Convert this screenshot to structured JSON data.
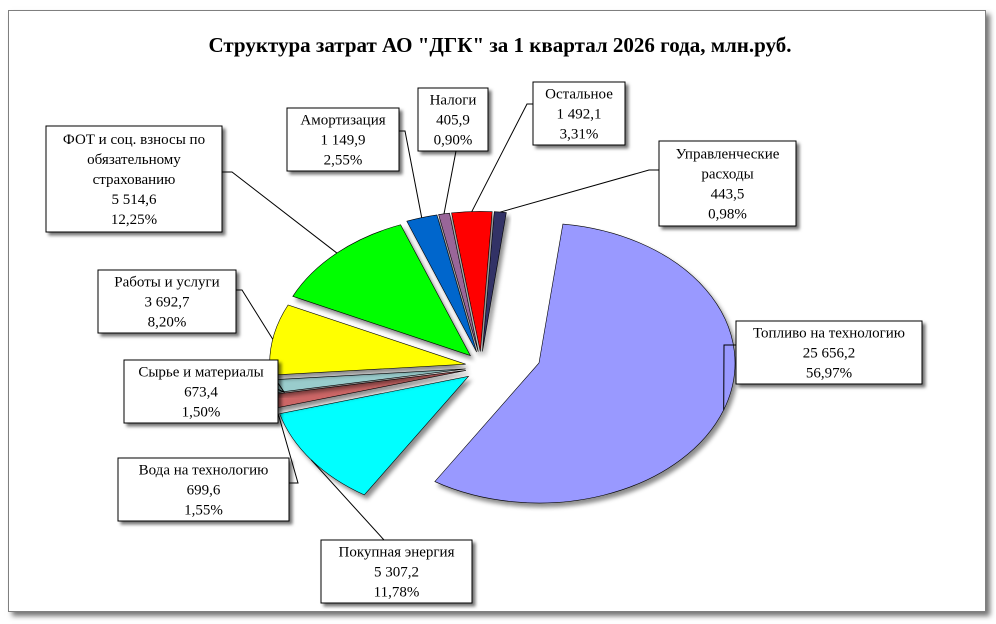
{
  "chart_data": {
    "type": "pie",
    "title": "Структура  затрат  АО \"ДГК\" за 1 квартал 2026 года, млн.руб.",
    "slices": [
      {
        "label_lines": [
          "Топливо на технологию"
        ],
        "value": "25 656,2",
        "percent": "56,97%",
        "share": 56.97,
        "color": "#9999ff",
        "name": "fuel"
      },
      {
        "label_lines": [
          "Покупная  энергия"
        ],
        "value": "5 307,2",
        "percent": "11,78%",
        "share": 11.78,
        "color": "#00ffff",
        "name": "purchased-energy"
      },
      {
        "label_lines": [
          "Вода  на технологию"
        ],
        "value": "699,6",
        "percent": "1,55%",
        "share": 1.55,
        "color": "#cc6666",
        "name": "water"
      },
      {
        "label_lines": [
          "Сырье и материалы"
        ],
        "value": "673,4",
        "percent": "1,50%",
        "share": 1.5,
        "color": "#99cccc",
        "name": "raw-materials"
      },
      {
        "label_lines": [
          "Работы и услуги"
        ],
        "value": "3 692,7",
        "percent": "8,20%",
        "share": 8.2,
        "color": "#ffff00",
        "name": "works-services"
      },
      {
        "label_lines": [
          "ФОТ и соц. взносы по",
          "обязательному",
          "страхованию"
        ],
        "value": "5 514,6",
        "percent": "12,25%",
        "share": 12.25,
        "color": "#00ff00",
        "name": "payroll"
      },
      {
        "label_lines": [
          "Амортизация"
        ],
        "value": "1 149,9",
        "percent": "2,55%",
        "share": 2.55,
        "color": "#0066cc",
        "name": "depreciation"
      },
      {
        "label_lines": [
          "Налоги"
        ],
        "value": "405,9",
        "percent": "0,90%",
        "share": 0.9,
        "color": "#996699",
        "name": "taxes"
      },
      {
        "label_lines": [
          "Остальное"
        ],
        "value": "1 492,1",
        "percent": "3,31%",
        "share": 3.31,
        "color": "#ff0000",
        "name": "other"
      },
      {
        "label_lines": [
          "Управленческие",
          "расходы"
        ],
        "value": "443,5",
        "percent": "0,98%",
        "share": 0.98,
        "color": "#333366",
        "name": "management"
      }
    ]
  }
}
